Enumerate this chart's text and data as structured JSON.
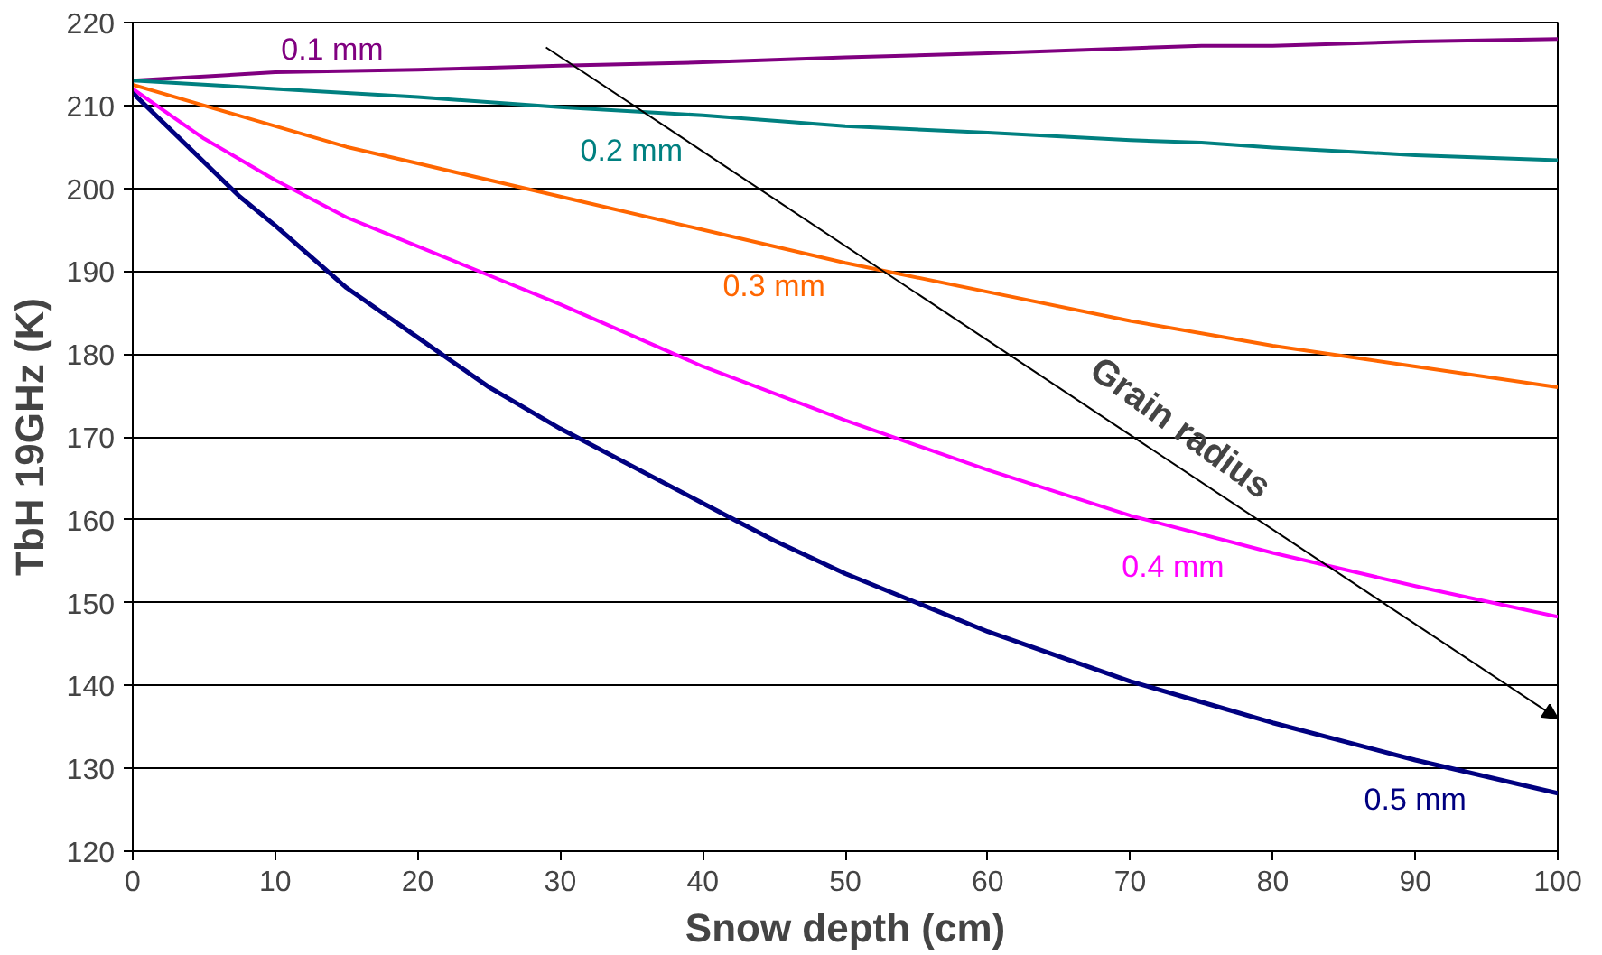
{
  "chart_data": {
    "type": "line",
    "xlabel": "Snow depth (cm)",
    "ylabel": "TbH 19GHz (K)",
    "xlim": [
      0,
      100
    ],
    "xticks": [
      0,
      10,
      20,
      30,
      40,
      50,
      60,
      70,
      80,
      90,
      100
    ],
    "ylim": [
      120,
      220
    ],
    "yticks": [
      120,
      130,
      140,
      150,
      160,
      170,
      180,
      190,
      200,
      210,
      220
    ],
    "grid": "y",
    "marker": "none",
    "line_style": "solid",
    "annotations": [
      "Grain radius"
    ],
    "series": [
      {
        "name": "0.1 mm",
        "color": "#800080",
        "x": [
          0,
          10,
          20,
          30,
          40,
          50,
          60,
          70,
          75,
          80,
          90,
          100
        ],
        "values": [
          213,
          214,
          214.3,
          214.8,
          215.2,
          215.8,
          216.3,
          216.9,
          217.2,
          217.2,
          217.7,
          218
        ]
      },
      {
        "name": "0.2 mm",
        "color": "#008080",
        "x": [
          0,
          10,
          20,
          30,
          40,
          50,
          60,
          70,
          75,
          80,
          90,
          100
        ],
        "values": [
          213,
          212,
          211,
          209.8,
          208.8,
          207.5,
          206.7,
          205.8,
          205.5,
          204.9,
          204,
          203.4
        ]
      },
      {
        "name": "0.3 mm",
        "color": "#ff6600",
        "x": [
          0,
          5,
          15,
          20,
          30,
          40,
          50,
          60,
          70,
          75,
          80,
          90,
          100
        ],
        "values": [
          212.5,
          210,
          205,
          203,
          199,
          195,
          191,
          187.5,
          184,
          182.5,
          181,
          178.5,
          176
        ]
      },
      {
        "name": "0.4 mm",
        "color": "#ff00ff",
        "x": [
          0,
          5,
          10,
          15,
          20,
          25,
          30,
          40,
          50,
          60,
          70,
          80,
          90,
          100
        ],
        "values": [
          212,
          206,
          201,
          196.5,
          193,
          189.5,
          186,
          178.5,
          172,
          166,
          160.5,
          156,
          152,
          148.3
        ]
      },
      {
        "name": "0.5 mm",
        "color": "#000080",
        "x": [
          0,
          7.5,
          10,
          15,
          20,
          25,
          30,
          40,
          45,
          50,
          60,
          70,
          75,
          80,
          90,
          100
        ],
        "values": [
          211.5,
          199,
          195.5,
          188,
          182,
          176,
          171,
          162,
          157.5,
          153.5,
          146.5,
          140.5,
          138,
          135.5,
          131,
          127
        ]
      }
    ]
  }
}
